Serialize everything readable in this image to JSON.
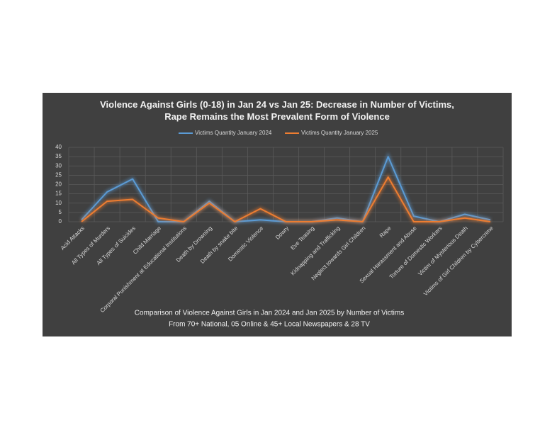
{
  "chart_data": {
    "type": "line",
    "title": "Violence Against Girls (0-18) in Jan 24 vs Jan 25: Decrease in Number of Victims, Rape Remains the Most Prevalent Form of Violence",
    "notes": [
      "Comparison of Violence Against Girls in Jan 2024 and Jan 2025 by Number of Victims",
      "From 70+ National, 05 Online & 45+ Local Newspapers & 28 TV"
    ],
    "categories": [
      "Acid Attacks",
      "All Types of Murders",
      "All Types of Suicides",
      "Child Marriage",
      "Corporal Punishment at Educational Institutions",
      "Death by Drowning",
      "Death by snake bite",
      "Domestic Violence",
      "Dowry",
      "Eve Teasing",
      "Kidnapping and Trafficking",
      "Neglect towards Girl Children",
      "Rape",
      "Sexual Harassment and Abuse",
      "Torture of Domestic Workers",
      "Victim of Mysterious Death",
      "Victims of Girl Children by Cybercrime"
    ],
    "series": [
      {
        "name": "Victims Quantity January 2024",
        "color": "#5b9bd5",
        "values": [
          1,
          16,
          23,
          0,
          0,
          11,
          0,
          1,
          0,
          0,
          2,
          0,
          35,
          3,
          0,
          4,
          1
        ]
      },
      {
        "name": "Victims Quantity January 2025",
        "color": "#ed7d31",
        "values": [
          0,
          11,
          12,
          2,
          0,
          10,
          0,
          7,
          0,
          0,
          1,
          0,
          24,
          0,
          0,
          2,
          0
        ]
      }
    ],
    "ylim": [
      0,
      40
    ],
    "yticks": [
      0,
      5,
      10,
      15,
      20,
      25,
      30,
      35,
      40
    ],
    "grid": true,
    "legend": "top"
  }
}
